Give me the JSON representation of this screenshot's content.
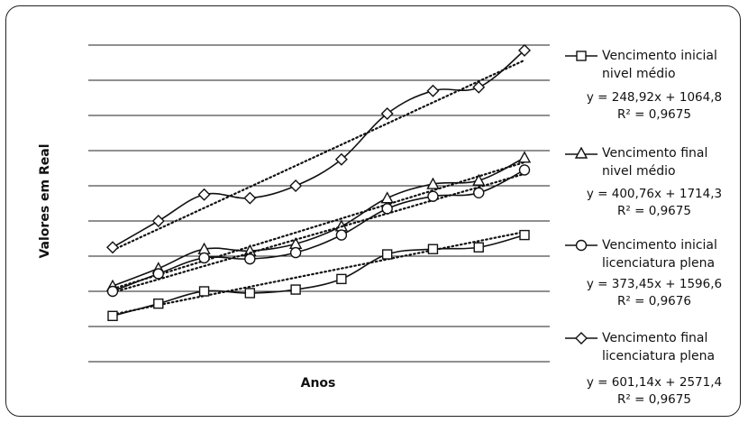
{
  "chart_data": {
    "type": "line",
    "xlabel": "Anos",
    "ylabel": "Valores em Real",
    "grid": true,
    "ylim": [
      0,
      9
    ],
    "x": [
      1,
      2,
      3,
      4,
      5,
      6,
      7,
      8,
      9,
      10
    ],
    "series": [
      {
        "name_line1": "Vencimento  inicial",
        "name_line2": "nivel médio",
        "marker": "square",
        "values": [
          1.3,
          1.65,
          2.0,
          1.95,
          2.05,
          2.35,
          3.05,
          3.2,
          3.25,
          3.6
        ],
        "equation": "y = 248,92x + 1064,8",
        "r2": "R² = 0,9675",
        "trend": [
          1.34,
          1.61,
          1.87,
          2.13,
          2.39,
          2.65,
          2.91,
          3.17,
          3.43,
          3.69
        ]
      },
      {
        "name_line1": "Vencimento  final",
        "name_line2": "nivel médio",
        "marker": "triangle",
        "values": [
          2.15,
          2.65,
          3.2,
          3.15,
          3.35,
          3.85,
          4.65,
          5.05,
          5.15,
          5.8
        ],
        "equation": "y = 400,76x + 1714,3",
        "r2": "R² = 0,9675",
        "trend": [
          2.07,
          2.47,
          2.87,
          3.27,
          3.67,
          4.07,
          4.47,
          4.87,
          5.27,
          5.67
        ]
      },
      {
        "name_line1": "Vencimento  inicial",
        "name_line2": "licenciatura plena",
        "marker": "circle",
        "values": [
          2.0,
          2.5,
          2.95,
          2.92,
          3.1,
          3.6,
          4.35,
          4.7,
          4.8,
          5.45
        ],
        "equation": "y = 373,45x + 1596,6",
        "r2": "R² = 0,9676",
        "trend": [
          1.97,
          2.34,
          2.72,
          3.09,
          3.47,
          3.84,
          4.21,
          4.59,
          4.96,
          5.34
        ]
      },
      {
        "name_line1": "Vencimento final",
        "name_line2": "licenciatura plena",
        "marker": "diamond",
        "values": [
          3.25,
          4.0,
          4.75,
          4.65,
          5.0,
          5.75,
          7.05,
          7.7,
          7.8,
          8.85
        ],
        "equation": "y = 601,14x + 2571,4",
        "r2": "R² = 0,9675",
        "trend": [
          3.17,
          3.77,
          4.37,
          4.97,
          5.57,
          6.17,
          6.77,
          7.37,
          7.97,
          8.57
        ]
      }
    ]
  }
}
